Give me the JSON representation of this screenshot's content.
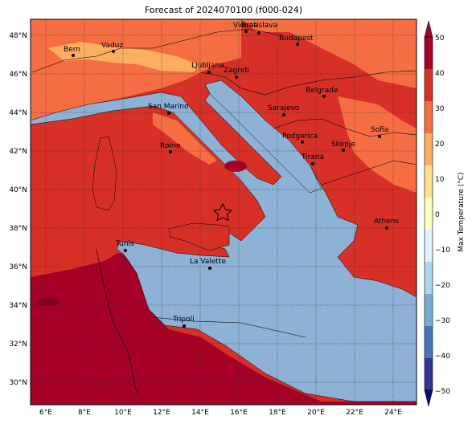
{
  "title": "Forecast of 2024070100 (f000-024)",
  "colorbar": {
    "label": "Max Temperature (°C)",
    "ticks": [
      "50",
      "40",
      "30",
      "20",
      "10",
      "0",
      "−10",
      "−20",
      "−30",
      "−40",
      "−50"
    ],
    "colors": [
      "#313695",
      "#4575b4",
      "#74add1",
      "#abd9e9",
      "#e0f3f8",
      "#ffffbf",
      "#fee090",
      "#fdae61",
      "#f46d43",
      "#d73027",
      "#a50026"
    ]
  },
  "axes": {
    "lon_ticks": [
      "6°E",
      "8°E",
      "10°E",
      "12°E",
      "14°E",
      "16°E",
      "18°E",
      "20°E",
      "22°E",
      "24°E"
    ],
    "lat_ticks": [
      "48°N",
      "46°N",
      "44°N",
      "42°N",
      "40°N",
      "38°N",
      "36°N",
      "34°N",
      "32°N",
      "30°N"
    ]
  },
  "cities": [
    {
      "name": "Bern"
    },
    {
      "name": "Vaduz"
    },
    {
      "name": "Vienna"
    },
    {
      "name": "Bratislava"
    },
    {
      "name": "Budapest"
    },
    {
      "name": "Ljubljana"
    },
    {
      "name": "Zagreb"
    },
    {
      "name": "San Marino"
    },
    {
      "name": "Belgrade"
    },
    {
      "name": "Sarajevo"
    },
    {
      "name": "Podgorica"
    },
    {
      "name": "Sofia"
    },
    {
      "name": "Skopje"
    },
    {
      "name": "Rome"
    },
    {
      "name": "Tirana"
    },
    {
      "name": "Athens"
    },
    {
      "name": "Tunis"
    },
    {
      "name": "La Valette"
    },
    {
      "name": "Tripoli"
    }
  ],
  "colors": {
    "sea": "#8eb1d6",
    "land_hot": "#d73027",
    "land_warm": "#f46d43",
    "land_mild": "#fdae61",
    "land_extreme": "#a50026"
  }
}
